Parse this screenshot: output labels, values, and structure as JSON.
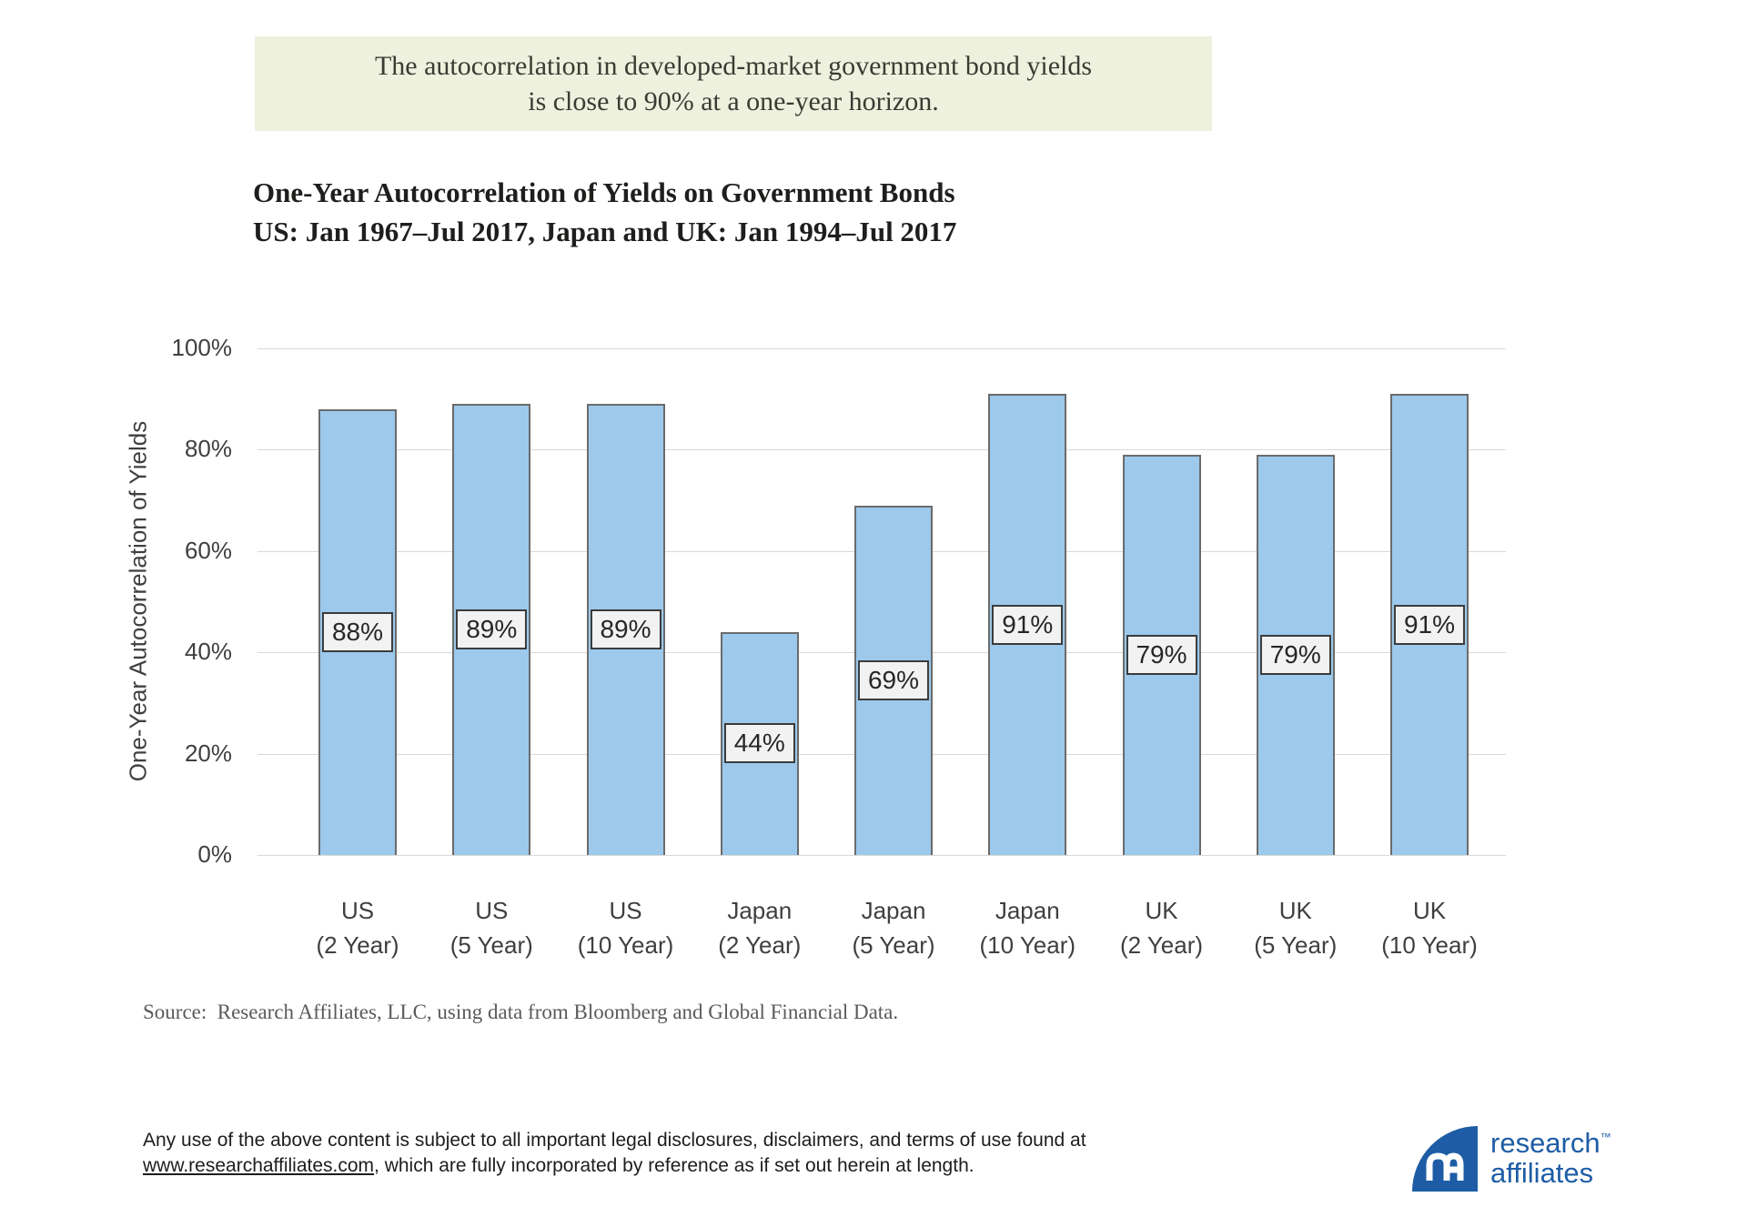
{
  "banner": {
    "line1": "The autocorrelation in developed-market government bond yields",
    "line2": "is close to 90% at a one-year horizon."
  },
  "title": {
    "line1": "One-Year Autocorrelation of Yields on Government Bonds",
    "line2": "US: Jan 1967–Jul 2017, Japan and UK: Jan 1994–Jul 2017"
  },
  "chart_data": {
    "type": "bar",
    "categories": [
      {
        "line1": "US",
        "line2": "(2 Year)"
      },
      {
        "line1": "US",
        "line2": "(5 Year)"
      },
      {
        "line1": "US",
        "line2": "(10 Year)"
      },
      {
        "line1": "Japan",
        "line2": "(2 Year)"
      },
      {
        "line1": "Japan",
        "line2": "(5 Year)"
      },
      {
        "line1": "Japan",
        "line2": "(10 Year)"
      },
      {
        "line1": "UK",
        "line2": "(2 Year)"
      },
      {
        "line1": "UK",
        "line2": "(5 Year)"
      },
      {
        "line1": "UK",
        "line2": "(10 Year)"
      }
    ],
    "values": [
      88,
      89,
      89,
      44,
      69,
      91,
      79,
      79,
      91
    ],
    "value_labels": [
      "88%",
      "89%",
      "89%",
      "44%",
      "69%",
      "91%",
      "79%",
      "79%",
      "91%"
    ],
    "ylabel": "One-Year Autocorrelation of Yields",
    "ytick_labels": [
      "0%",
      "20%",
      "40%",
      "60%",
      "80%",
      "100%"
    ],
    "ylim": [
      0,
      100
    ],
    "grid": true,
    "legend": "none",
    "bar_fill": "#9CC9EC",
    "bar_border": "#6B6B6B",
    "label_box_fill": "#F2F2F2",
    "label_box_border": "#3B3B3B"
  },
  "source_text": "Source:  Research Affiliates, LLC, using data from Bloomberg and Global Financial Data.",
  "disclaimer": {
    "line1": "Any use of the above content is subject to all important legal disclosures, disclaimers, and terms of use found at",
    "link_text": "www.researchaffiliates.com",
    "line2_rest": ", which are fully incorporated by reference as if set out herein at length."
  },
  "logo": {
    "monogram": "RA",
    "name_line1": "research",
    "trademark": "™",
    "name_line2": "affiliates",
    "brand_color": "#1E5DA5"
  }
}
